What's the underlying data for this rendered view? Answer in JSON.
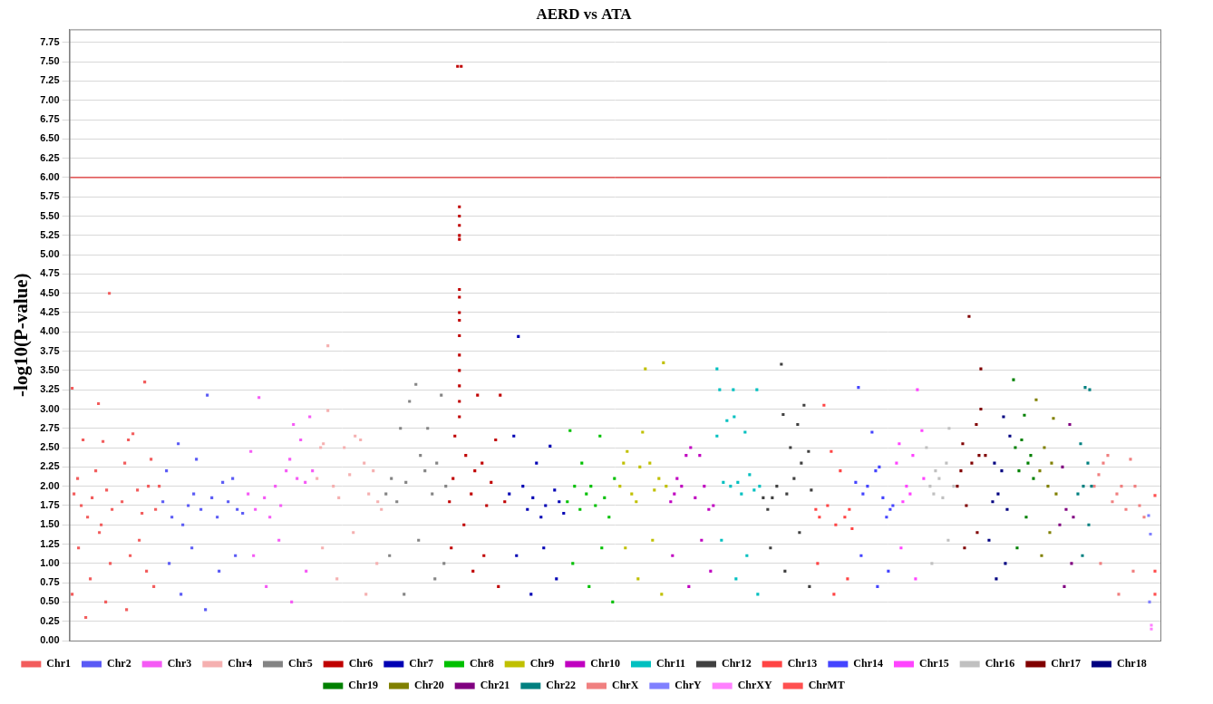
{
  "chart_data": {
    "type": "scatter",
    "title": "AERD vs ATA",
    "y_label": "-log10(P-value)",
    "xlim": [
      75,
      1278
    ],
    "ylim": [
      0,
      7.92
    ],
    "yticks": [
      {
        "value": 0,
        "label": "0.00"
      },
      {
        "value": 0.25,
        "label": "0.25"
      },
      {
        "value": 0.5,
        "label": "0.50"
      },
      {
        "value": 0.75,
        "label": "0.75"
      },
      {
        "value": 1,
        "label": "1.00"
      },
      {
        "value": 1.25,
        "label": "1.25"
      },
      {
        "value": 1.5,
        "label": "1.50"
      },
      {
        "value": 1.75,
        "label": "1.75"
      },
      {
        "value": 2,
        "label": "2.00"
      },
      {
        "value": 2.25,
        "label": "2.25"
      },
      {
        "value": 2.5,
        "label": "2.50"
      },
      {
        "value": 2.75,
        "label": "2.75"
      },
      {
        "value": 3,
        "label": "3.00"
      },
      {
        "value": 3.25,
        "label": "3.25"
      },
      {
        "value": 3.5,
        "label": "3.50"
      },
      {
        "value": 3.75,
        "label": "3.75"
      },
      {
        "value": 4,
        "label": "4.00"
      },
      {
        "value": 4.25,
        "label": "4.25"
      },
      {
        "value": 4.5,
        "label": "4.50"
      },
      {
        "value": 4.75,
        "label": "4.75"
      },
      {
        "value": 5,
        "label": "5.00"
      },
      {
        "value": 5.25,
        "label": "5.25"
      },
      {
        "value": 5.5,
        "label": "5.50"
      },
      {
        "value": 5.75,
        "label": "5.75"
      },
      {
        "value": 6,
        "label": "6.00"
      },
      {
        "value": 6.25,
        "label": "6.25"
      },
      {
        "value": 6.5,
        "label": "6.50"
      },
      {
        "value": 6.75,
        "label": "6.75"
      },
      {
        "value": 7,
        "label": "7.00"
      },
      {
        "value": 7.25,
        "label": "7.25"
      },
      {
        "value": 7.5,
        "label": "7.50"
      },
      {
        "value": 7.75,
        "label": "7.75"
      }
    ],
    "grid": true,
    "legend": "bottom",
    "tick_labels": "y",
    "marker": "square",
    "reference_line": {
      "y": 6,
      "color": "#e00000"
    },
    "series": [
      {
        "name": "Chr1",
        "color": "#f25c5c",
        "x": [
          78,
          80,
          84,
          88,
          90,
          95,
          100,
          104,
          107,
          110,
          112,
          116,
          119,
          122,
          133,
          136,
          140,
          145,
          150,
          155,
          158,
          162,
          165,
          170,
          174,
          85,
          98,
          115,
          142,
          160,
          78,
          93,
          108,
          120,
          138,
          152,
          168
        ],
        "values": [
          3.27,
          1.9,
          2.1,
          1.75,
          2.6,
          1.6,
          1.85,
          2.2,
          3.07,
          1.5,
          2.58,
          1.95,
          4.5,
          1.7,
          1.8,
          2.3,
          2.6,
          2.68,
          1.95,
          1.65,
          3.35,
          2.0,
          2.35,
          1.7,
          2.0,
          1.2,
          0.8,
          0.5,
          1.1,
          0.9,
          0.6,
          0.3,
          1.4,
          1.0,
          0.4,
          1.3,
          0.7
        ]
      },
      {
        "name": "Chr2",
        "color": "#5a5af5",
        "x": [
          178,
          182,
          188,
          195,
          200,
          206,
          212,
          215,
          220,
          227,
          232,
          238,
          244,
          250,
          255,
          260,
          266,
          185,
          198,
          210,
          225,
          240,
          258
        ],
        "values": [
          1.8,
          2.2,
          1.6,
          2.55,
          1.5,
          1.75,
          1.9,
          2.35,
          1.7,
          3.18,
          1.85,
          1.6,
          2.05,
          1.8,
          2.1,
          1.7,
          1.65,
          1.0,
          0.6,
          1.2,
          0.4,
          0.9,
          1.1
        ]
      },
      {
        "name": "Chr3",
        "color": "#f55af5",
        "x": [
          272,
          275,
          280,
          284,
          290,
          296,
          302,
          308,
          314,
          318,
          322,
          326,
          330,
          335,
          340,
          343,
          278,
          292,
          306,
          320,
          336
        ],
        "values": [
          1.9,
          2.45,
          1.7,
          3.15,
          1.85,
          1.6,
          2.0,
          1.75,
          2.2,
          2.35,
          2.8,
          2.1,
          2.6,
          2.05,
          2.9,
          2.2,
          1.1,
          0.7,
          1.3,
          0.5,
          0.9
        ]
      },
      {
        "name": "Chr4",
        "color": "#f5b0b0",
        "x": [
          348,
          352,
          355,
          360,
          360,
          366,
          372,
          378,
          384,
          390,
          396,
          400,
          405,
          410,
          415,
          419,
          354,
          370,
          388,
          402,
          414
        ],
        "values": [
          2.1,
          2.5,
          2.55,
          3.82,
          2.98,
          2.0,
          1.85,
          2.5,
          2.15,
          2.65,
          2.6,
          2.3,
          1.9,
          2.2,
          1.8,
          1.7,
          1.2,
          0.8,
          1.4,
          0.6,
          1.0
        ]
      },
      {
        "name": "Chr5",
        "color": "#848484",
        "x": [
          424,
          430,
          436,
          440,
          446,
          450,
          457,
          462,
          467,
          470,
          475,
          480,
          485,
          490,
          428,
          444,
          460,
          478,
          488
        ],
        "values": [
          1.9,
          2.1,
          1.8,
          2.75,
          2.05,
          3.1,
          3.32,
          2.4,
          2.2,
          2.75,
          1.9,
          2.3,
          3.18,
          2.0,
          1.1,
          0.6,
          1.3,
          0.8,
          1.0
        ]
      },
      {
        "name": "Chr6",
        "color": "#c00000",
        "x": [
          494,
          498,
          500,
          503,
          507,
          505,
          505,
          505,
          505,
          505,
          505,
          505,
          505,
          505,
          505,
          505,
          505,
          505,
          505,
          505,
          512,
          518,
          522,
          525,
          530,
          535,
          540,
          545,
          550,
          555,
          496,
          510,
          520,
          532,
          548
        ],
        "values": [
          1.8,
          2.1,
          2.65,
          7.44,
          7.44,
          5.62,
          5.5,
          5.38,
          5.25,
          5.2,
          4.55,
          4.45,
          4.25,
          4.15,
          3.95,
          3.7,
          3.5,
          3.3,
          3.1,
          2.9,
          2.4,
          1.9,
          2.2,
          3.18,
          2.3,
          1.75,
          2.05,
          2.6,
          3.18,
          1.8,
          1.2,
          1.5,
          0.9,
          1.1,
          0.7
        ]
      },
      {
        "name": "Chr7",
        "color": "#0000b4",
        "x": [
          560,
          565,
          570,
          575,
          580,
          586,
          590,
          595,
          600,
          605,
          610,
          615,
          620,
          568,
          584,
          598,
          612
        ],
        "values": [
          1.9,
          2.65,
          3.94,
          2.0,
          1.7,
          1.85,
          2.3,
          1.6,
          1.75,
          2.52,
          1.95,
          1.8,
          1.65,
          1.1,
          0.6,
          1.2,
          0.8
        ]
      },
      {
        "name": "Chr8",
        "color": "#00c000",
        "x": [
          624,
          627,
          632,
          638,
          640,
          645,
          650,
          655,
          660,
          665,
          670,
          676,
          630,
          648,
          662,
          674
        ],
        "values": [
          1.8,
          2.72,
          2.0,
          1.7,
          2.3,
          1.9,
          2.0,
          1.75,
          2.65,
          1.85,
          1.6,
          2.1,
          1.0,
          0.7,
          1.2,
          0.5
        ]
      },
      {
        "name": "Chr9",
        "color": "#c0c000",
        "x": [
          682,
          686,
          690,
          695,
          700,
          704,
          707,
          710,
          715,
          720,
          725,
          730,
          733,
          688,
          702,
          718,
          728
        ],
        "values": [
          2.0,
          2.3,
          2.45,
          1.9,
          1.8,
          2.25,
          2.7,
          3.52,
          2.3,
          1.95,
          2.1,
          3.6,
          2.0,
          1.2,
          0.8,
          1.3,
          0.6
        ]
      },
      {
        "name": "Chr10",
        "color": "#c000c0",
        "x": [
          738,
          742,
          745,
          750,
          755,
          760,
          765,
          770,
          775,
          780,
          785,
          740,
          758,
          772,
          782
        ],
        "values": [
          1.8,
          1.9,
          2.1,
          2.0,
          2.4,
          2.5,
          1.85,
          2.4,
          2.0,
          1.7,
          1.75,
          1.1,
          0.7,
          1.3,
          0.9
        ]
      },
      {
        "name": "Chr11",
        "color": "#00c0c0",
        "x": [
          789,
          789,
          792,
          796,
          800,
          804,
          807,
          808,
          812,
          816,
          820,
          825,
          830,
          833,
          836,
          794,
          810,
          822,
          834
        ],
        "values": [
          3.52,
          2.65,
          3.25,
          2.05,
          2.85,
          2.0,
          3.25,
          2.9,
          2.05,
          1.9,
          2.7,
          2.15,
          1.95,
          3.25,
          2.0,
          1.3,
          0.8,
          1.1,
          0.6
        ]
      },
      {
        "name": "Chr12",
        "color": "#404040",
        "x": [
          840,
          845,
          850,
          855,
          860,
          862,
          866,
          870,
          874,
          878,
          882,
          885,
          890,
          893,
          848,
          864,
          880,
          891
        ],
        "values": [
          1.85,
          1.7,
          1.85,
          2.0,
          3.58,
          2.93,
          1.9,
          2.5,
          2.1,
          2.8,
          2.3,
          3.05,
          2.45,
          1.95,
          1.2,
          0.9,
          1.4,
          0.7
        ]
      },
      {
        "name": "Chr13",
        "color": "#ff4444",
        "x": [
          898,
          902,
          907,
          911,
          915,
          920,
          925,
          930,
          935,
          938,
          900,
          918,
          933
        ],
        "values": [
          1.7,
          1.6,
          3.05,
          1.75,
          2.45,
          1.5,
          2.2,
          1.6,
          1.7,
          1.45,
          1.0,
          0.6,
          0.8
        ]
      },
      {
        "name": "Chr14",
        "color": "#4444ff",
        "x": [
          942,
          945,
          950,
          955,
          960,
          964,
          968,
          972,
          976,
          980,
          983,
          948,
          966,
          978
        ],
        "values": [
          2.05,
          3.28,
          1.9,
          2.0,
          2.7,
          2.2,
          2.25,
          1.85,
          1.6,
          1.7,
          1.75,
          1.1,
          0.7,
          0.9
        ]
      },
      {
        "name": "Chr15",
        "color": "#ff44ff",
        "x": [
          987,
          990,
          994,
          998,
          1002,
          1005,
          1010,
          1015,
          1017,
          992,
          1008
        ],
        "values": [
          2.3,
          2.55,
          1.8,
          2.0,
          1.9,
          2.4,
          3.25,
          2.72,
          2.1,
          1.2,
          0.8
        ]
      },
      {
        "name": "Chr16",
        "color": "#c0c0c0",
        "x": [
          1020,
          1024,
          1028,
          1030,
          1034,
          1038,
          1042,
          1045,
          1050,
          1026,
          1044
        ],
        "values": [
          2.5,
          2.0,
          1.9,
          2.2,
          2.1,
          1.85,
          2.3,
          2.75,
          2.0,
          1.0,
          1.3
        ]
      },
      {
        "name": "Chr17",
        "color": "#800000",
        "x": [
          1054,
          1058,
          1060,
          1064,
          1067,
          1070,
          1075,
          1078,
          1080,
          1080,
          1085,
          1062,
          1076
        ],
        "values": [
          2.0,
          2.2,
          2.55,
          1.75,
          4.2,
          2.3,
          2.8,
          2.4,
          3.52,
          3.0,
          2.4,
          1.2,
          1.4
        ]
      },
      {
        "name": "Chr18",
        "color": "#000080",
        "x": [
          1089,
          1093,
          1095,
          1099,
          1103,
          1105,
          1109,
          1112,
          1097,
          1107
        ],
        "values": [
          1.3,
          1.8,
          2.3,
          1.9,
          2.2,
          2.9,
          1.7,
          2.65,
          0.8,
          1.0
        ]
      },
      {
        "name": "Chr19",
        "color": "#008000",
        "x": [
          1116,
          1118,
          1122,
          1125,
          1128,
          1132,
          1135,
          1138,
          1120,
          1130
        ],
        "values": [
          3.38,
          2.5,
          2.2,
          2.6,
          2.92,
          2.3,
          2.4,
          2.1,
          1.2,
          1.6
        ]
      },
      {
        "name": "Chr20",
        "color": "#808000",
        "x": [
          1141,
          1145,
          1150,
          1154,
          1158,
          1160,
          1163,
          1147,
          1156
        ],
        "values": [
          3.12,
          2.2,
          2.5,
          2.0,
          2.3,
          2.88,
          1.9,
          1.1,
          1.4
        ]
      },
      {
        "name": "Chr21",
        "color": "#800080",
        "x": [
          1167,
          1170,
          1174,
          1178,
          1182,
          1172,
          1180
        ],
        "values": [
          1.5,
          2.25,
          1.7,
          2.8,
          1.6,
          0.7,
          1.0
        ]
      },
      {
        "name": "Chr22",
        "color": "#008080",
        "x": [
          1187,
          1190,
          1193,
          1195,
          1198,
          1200,
          1202,
          1192,
          1199
        ],
        "values": [
          1.9,
          2.55,
          2.0,
          3.28,
          2.3,
          3.25,
          2.0,
          1.1,
          1.5
        ]
      },
      {
        "name": "ChrX",
        "color": "#f08080",
        "x": [
          1205,
          1210,
          1215,
          1220,
          1225,
          1230,
          1235,
          1240,
          1245,
          1250,
          1255,
          1260,
          1212,
          1232,
          1248
        ],
        "values": [
          2.0,
          2.15,
          2.3,
          2.4,
          1.8,
          1.9,
          2.0,
          1.7,
          2.35,
          2.0,
          1.75,
          1.6,
          1.0,
          0.6,
          0.9
        ]
      },
      {
        "name": "ChrY",
        "color": "#8080ff",
        "x": [
          1265,
          1267,
          1266
        ],
        "values": [
          1.62,
          1.38,
          0.5
        ]
      },
      {
        "name": "ChrXY",
        "color": "#ff80ff",
        "x": [
          1268,
          1268
        ],
        "values": [
          0.15,
          0.2
        ]
      },
      {
        "name": "ChrMT",
        "color": "#ff5050",
        "x": [
          1272,
          1272,
          1272
        ],
        "values": [
          1.88,
          0.9,
          0.6
        ]
      }
    ]
  }
}
